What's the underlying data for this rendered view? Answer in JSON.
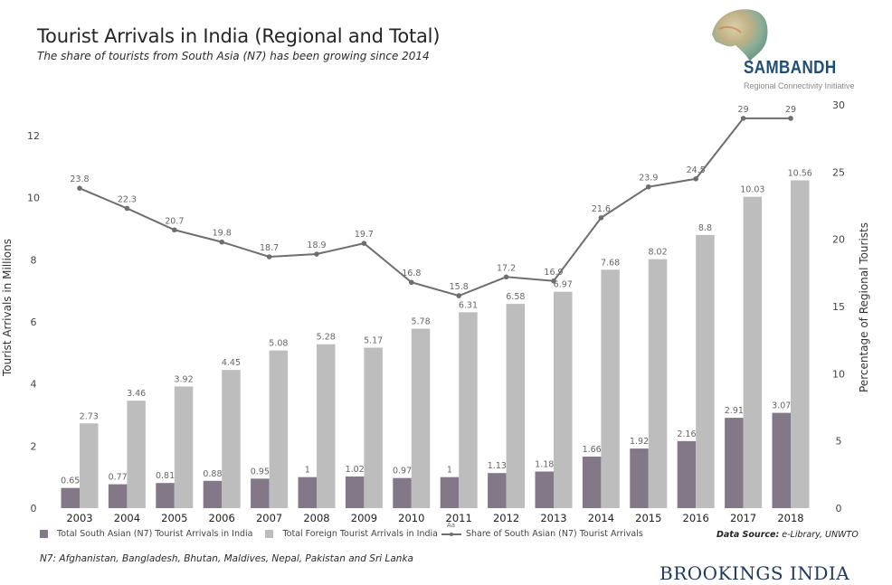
{
  "header": {
    "title": "Tourist Arrivals in India (Regional and Total)",
    "subtitle": "The share of tourists from South Asia (N7) has been growing since 2014"
  },
  "logo": {
    "name": "SAMBANDH",
    "tagline": "Regional Connectivity Initiative"
  },
  "chart_data": {
    "type": "bar",
    "title": "Tourist Arrivals in India (Regional and Total)",
    "subtitle": "The share of tourists from South Asia (N7) has been growing since 2014",
    "categories": [
      "2003",
      "2004",
      "2005",
      "2006",
      "2007",
      "2008",
      "2009",
      "2010",
      "2011",
      "2012",
      "2013",
      "2014",
      "2015",
      "2016",
      "2017",
      "2018"
    ],
    "series": [
      {
        "name": "Total South Asian (N7) Tourist Arrivals in India",
        "type": "bar",
        "axis": "left",
        "color": "#837888",
        "values": [
          0.65,
          0.77,
          0.81,
          0.88,
          0.95,
          1,
          1.02,
          0.97,
          1,
          1.13,
          1.18,
          1.66,
          1.92,
          2.16,
          2.91,
          3.07
        ],
        "labels": [
          "0.65",
          "0.77",
          "0.81",
          "0.88",
          "0.95",
          "1",
          "1.02",
          "0.97",
          "1",
          "1.13",
          "1.18",
          "1.66",
          "1.92",
          "2.16",
          "2.91",
          "3.07"
        ]
      },
      {
        "name": "Total Foreign Tourist Arrivals in India",
        "type": "bar",
        "axis": "left",
        "color": "#bdbdbd",
        "values": [
          2.73,
          3.46,
          3.92,
          4.45,
          5.08,
          5.28,
          5.17,
          5.78,
          6.31,
          6.58,
          6.97,
          7.68,
          8.02,
          8.8,
          10.03,
          10.56
        ],
        "labels": [
          "2.73",
          "3.46",
          "3.92",
          "4.45",
          "5.08",
          "5.28",
          "5.17",
          "5.78",
          "6.31",
          "6.58",
          "6.97",
          "7.68",
          "8.02",
          "8.8",
          "10.03",
          "10.56"
        ]
      },
      {
        "name": "Share of South Asian (N7) Tourist Arrivals",
        "type": "line",
        "axis": "right",
        "color": "#6e6e6e",
        "values": [
          23.8,
          22.3,
          20.7,
          19.8,
          18.7,
          18.9,
          19.7,
          16.8,
          15.8,
          17.2,
          16.9,
          21.6,
          23.9,
          24.5,
          29,
          29
        ],
        "labels": [
          "23.8",
          "22.3",
          "20.7",
          "19.8",
          "18.7",
          "18.9",
          "19.7",
          "16.8",
          "15.8",
          "17.2",
          "16.9",
          "21.6",
          "23.9",
          "24.5",
          "29",
          "29"
        ]
      }
    ],
    "xlabel": "",
    "ylabel": "Tourist Arrivals in Millions",
    "ylim": [
      0,
      12
    ],
    "yticks": [
      "0",
      "2",
      "4",
      "6",
      "8",
      "10",
      "12"
    ],
    "ylabel_right": "Percentage of Regional Tourists",
    "ylim_right": [
      0,
      30
    ],
    "yticks_right": [
      "0",
      "5",
      "10",
      "15",
      "20",
      "25",
      "30"
    ],
    "grid": false,
    "legend": "bottom-left"
  },
  "legend": {
    "items": [
      {
        "label": "Total South Asian (N7) Tourist Arrivals in India",
        "color": "#837888"
      },
      {
        "label": "Total Foreign Tourist Arrivals in India",
        "color": "#bdbdbd"
      },
      {
        "label": "Share of South Asian (N7) Tourist Arrivals",
        "color": "#6e6e6e",
        "marker_text": "Aa"
      }
    ]
  },
  "source": {
    "label": "Data Source:",
    "value": " e-Library, UNWTO"
  },
  "footnote": "N7: Afghanistan, Bangladesh, Bhutan, Maldives, Nepal, Pakistan and Sri Lanka",
  "brand": "BROOKINGS INDIA"
}
